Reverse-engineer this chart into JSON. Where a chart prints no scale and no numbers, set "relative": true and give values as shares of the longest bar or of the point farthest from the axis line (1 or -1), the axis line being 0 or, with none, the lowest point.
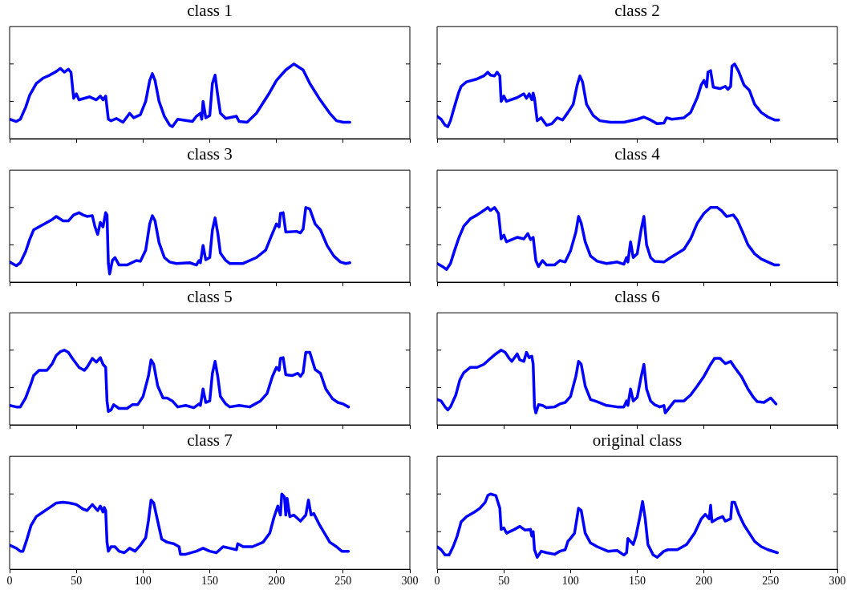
{
  "chart_data": [
    {
      "type": "line",
      "title": "class 1",
      "color": "#0000ff",
      "relative": true,
      "xlim": [
        0,
        300
      ],
      "xticks": [
        0,
        50,
        100,
        150,
        200,
        250,
        300
      ],
      "tick_labels": false,
      "x": [
        0,
        5,
        8,
        12,
        15,
        20,
        25,
        30,
        35,
        38,
        41,
        44,
        46,
        48,
        50,
        52,
        60,
        65,
        68,
        70,
        72,
        74,
        76,
        80,
        85,
        90,
        93,
        98,
        102,
        105,
        107,
        109,
        112,
        116,
        120,
        122,
        126,
        130,
        137,
        140,
        143,
        144,
        145,
        147,
        150,
        152,
        154,
        156,
        158,
        162,
        170,
        172,
        178,
        185,
        195,
        200,
        207,
        213,
        220,
        225,
        232,
        240,
        245,
        250,
        255
      ],
      "values": [
        0.26,
        0.23,
        0.26,
        0.42,
        0.58,
        0.74,
        0.81,
        0.85,
        0.9,
        0.94,
        0.89,
        0.93,
        0.89,
        0.54,
        0.6,
        0.52,
        0.56,
        0.52,
        0.57,
        0.52,
        0.57,
        0.26,
        0.24,
        0.27,
        0.22,
        0.34,
        0.28,
        0.32,
        0.5,
        0.78,
        0.87,
        0.78,
        0.5,
        0.3,
        0.18,
        0.16,
        0.26,
        0.25,
        0.23,
        0.3,
        0.34,
        0.26,
        0.5,
        0.28,
        0.31,
        0.74,
        0.85,
        0.58,
        0.34,
        0.27,
        0.3,
        0.23,
        0.22,
        0.34,
        0.62,
        0.78,
        0.92,
        1,
        0.92,
        0.74,
        0.54,
        0.34,
        0.24,
        0.22,
        0.22
      ]
    },
    {
      "type": "line",
      "title": "class 2",
      "color": "#0000ff",
      "relative": true,
      "xlim": [
        0,
        300
      ],
      "xticks": [
        0,
        50,
        100,
        150,
        200,
        250,
        300
      ],
      "tick_labels": false,
      "x": [
        0,
        3,
        6,
        8,
        10,
        13,
        16,
        18,
        22,
        30,
        35,
        38,
        40,
        43,
        45,
        47,
        48,
        50,
        52,
        60,
        65,
        67,
        69,
        71,
        72,
        73,
        75,
        78,
        82,
        86,
        90,
        94,
        98,
        102,
        105,
        107,
        109,
        112,
        117,
        122,
        130,
        140,
        150,
        155,
        160,
        165,
        170,
        172,
        176,
        185,
        190,
        195,
        198,
        200,
        202,
        203,
        205,
        207,
        212,
        216,
        218,
        220,
        221,
        223,
        226,
        230,
        234,
        238,
        243,
        248,
        253,
        256
      ],
      "values": [
        0.3,
        0.26,
        0.18,
        0.16,
        0.24,
        0.43,
        0.61,
        0.7,
        0.76,
        0.8,
        0.84,
        0.89,
        0.85,
        0.84,
        0.89,
        0.84,
        0.5,
        0.57,
        0.5,
        0.55,
        0.6,
        0.54,
        0.6,
        0.52,
        0.61,
        0.54,
        0.24,
        0.28,
        0.18,
        0.2,
        0.28,
        0.25,
        0.35,
        0.46,
        0.72,
        0.84,
        0.76,
        0.46,
        0.31,
        0.24,
        0.22,
        0.22,
        0.26,
        0.29,
        0.25,
        0.2,
        0.21,
        0.28,
        0.26,
        0.28,
        0.35,
        0.55,
        0.72,
        0.78,
        0.69,
        0.89,
        0.91,
        0.69,
        0.67,
        0.7,
        0.66,
        0.7,
        0.97,
        1,
        0.9,
        0.72,
        0.65,
        0.46,
        0.35,
        0.29,
        0.25,
        0.25
      ]
    },
    {
      "type": "line",
      "title": "class 3",
      "color": "#0000ff",
      "relative": true,
      "xlim": [
        0,
        300
      ],
      "xticks": [
        0,
        50,
        100,
        150,
        200,
        250,
        300
      ],
      "tick_labels": false,
      "x": [
        0,
        5,
        8,
        12,
        15,
        18,
        22,
        28,
        32,
        35,
        40,
        44,
        48,
        52,
        55,
        58,
        62,
        64,
        66,
        68,
        70,
        72,
        73,
        74,
        75,
        77,
        79,
        82,
        88,
        95,
        98,
        102,
        105,
        107,
        109,
        112,
        116,
        120,
        125,
        135,
        140,
        142,
        143,
        145,
        147,
        150,
        152,
        154,
        156,
        158,
        162,
        165,
        175,
        185,
        192,
        196,
        200,
        202,
        203,
        205,
        207,
        215,
        218,
        220,
        222,
        225,
        229,
        233,
        238,
        243,
        248,
        252,
        255
      ],
      "values": [
        0.27,
        0.22,
        0.26,
        0.41,
        0.57,
        0.7,
        0.74,
        0.8,
        0.84,
        0.88,
        0.82,
        0.82,
        0.9,
        0.93,
        0.9,
        0.88,
        0.89,
        0.74,
        0.64,
        0.8,
        0.74,
        0.93,
        0.9,
        0.25,
        0.11,
        0.29,
        0.33,
        0.23,
        0.23,
        0.29,
        0.28,
        0.43,
        0.78,
        0.89,
        0.82,
        0.53,
        0.33,
        0.27,
        0.25,
        0.26,
        0.23,
        0.29,
        0.26,
        0.49,
        0.3,
        0.33,
        0.7,
        0.86,
        0.66,
        0.39,
        0.29,
        0.25,
        0.25,
        0.33,
        0.43,
        0.61,
        0.78,
        0.74,
        0.92,
        0.93,
        0.67,
        0.68,
        0.66,
        0.71,
        1,
        0.98,
        0.78,
        0.7,
        0.49,
        0.35,
        0.27,
        0.25,
        0.26
      ]
    },
    {
      "type": "line",
      "title": "class 4",
      "color": "#0000ff",
      "relative": true,
      "xlim": [
        0,
        300
      ],
      "xticks": [
        0,
        50,
        100,
        150,
        200,
        250,
        300
      ],
      "tick_labels": false,
      "x": [
        0,
        4,
        7,
        10,
        13,
        16,
        20,
        25,
        30,
        35,
        38,
        40,
        43,
        46,
        48,
        50,
        52,
        60,
        65,
        68,
        70,
        72,
        74,
        76,
        79,
        82,
        88,
        92,
        96,
        100,
        104,
        106,
        108,
        111,
        115,
        120,
        127,
        135,
        140,
        142,
        143,
        145,
        147,
        150,
        153,
        155,
        157,
        160,
        163,
        170,
        175,
        185,
        190,
        195,
        200,
        205,
        210,
        213,
        217,
        222,
        225,
        229,
        233,
        238,
        243,
        248,
        253,
        256
      ],
      "values": [
        0.25,
        0.21,
        0.17,
        0.25,
        0.42,
        0.58,
        0.75,
        0.85,
        0.9,
        0.96,
        1,
        0.96,
        1,
        0.92,
        0.58,
        0.63,
        0.54,
        0.6,
        0.58,
        0.65,
        0.57,
        0.6,
        0.29,
        0.21,
        0.29,
        0.23,
        0.23,
        0.29,
        0.27,
        0.42,
        0.67,
        0.88,
        0.79,
        0.54,
        0.35,
        0.28,
        0.25,
        0.27,
        0.24,
        0.33,
        0.27,
        0.54,
        0.33,
        0.38,
        0.71,
        0.88,
        0.5,
        0.33,
        0.28,
        0.27,
        0.33,
        0.44,
        0.58,
        0.79,
        0.92,
        1,
        1,
        0.96,
        0.88,
        0.9,
        0.83,
        0.67,
        0.5,
        0.38,
        0.31,
        0.27,
        0.23,
        0.23
      ]
    },
    {
      "type": "line",
      "title": "class 5",
      "color": "#0000ff",
      "relative": true,
      "xlim": [
        0,
        300
      ],
      "xticks": [
        0,
        50,
        100,
        150,
        200,
        250,
        300
      ],
      "tick_labels": false,
      "x": [
        0,
        5,
        8,
        12,
        16,
        18,
        22,
        28,
        32,
        35,
        38,
        41,
        44,
        47,
        52,
        56,
        58,
        62,
        65,
        68,
        70,
        72,
        73,
        74,
        76,
        78,
        82,
        88,
        92,
        96,
        100,
        104,
        106,
        108,
        111,
        115,
        118,
        122,
        126,
        132,
        138,
        142,
        143,
        145,
        147,
        150,
        152,
        154,
        156,
        158,
        162,
        165,
        172,
        180,
        188,
        193,
        197,
        200,
        202,
        203,
        205,
        207,
        212,
        216,
        218,
        220,
        222,
        225,
        229,
        233,
        237,
        242,
        246,
        250,
        254
      ],
      "values": [
        0.26,
        0.24,
        0.24,
        0.36,
        0.55,
        0.66,
        0.73,
        0.73,
        0.82,
        0.93,
        0.98,
        1,
        0.97,
        0.89,
        0.77,
        0.73,
        0.77,
        0.89,
        0.84,
        0.9,
        0.81,
        0.77,
        0.32,
        0.18,
        0.2,
        0.27,
        0.22,
        0.22,
        0.27,
        0.27,
        0.38,
        0.65,
        0.87,
        0.81,
        0.52,
        0.36,
        0.36,
        0.32,
        0.24,
        0.26,
        0.23,
        0.28,
        0.26,
        0.48,
        0.3,
        0.32,
        0.69,
        0.85,
        0.65,
        0.38,
        0.28,
        0.24,
        0.26,
        0.24,
        0.32,
        0.42,
        0.65,
        0.77,
        0.73,
        0.89,
        0.9,
        0.67,
        0.66,
        0.69,
        0.65,
        0.7,
        0.97,
        0.97,
        0.74,
        0.69,
        0.48,
        0.35,
        0.3,
        0.28,
        0.24
      ]
    },
    {
      "type": "line",
      "title": "class 6",
      "color": "#0000ff",
      "relative": true,
      "xlim": [
        0,
        300
      ],
      "xticks": [
        0,
        50,
        100,
        150,
        200,
        250,
        300
      ],
      "tick_labels": false,
      "x": [
        0,
        3,
        6,
        8,
        10,
        14,
        17,
        20,
        25,
        30,
        35,
        40,
        44,
        48,
        51,
        54,
        56,
        60,
        62,
        65,
        67,
        69,
        71,
        72,
        73,
        74,
        76,
        79,
        82,
        88,
        92,
        96,
        100,
        104,
        106,
        108,
        111,
        115,
        120,
        127,
        135,
        140,
        142,
        143,
        145,
        147,
        150,
        153,
        155,
        157,
        160,
        163,
        167,
        170,
        171,
        174,
        178,
        185,
        190,
        195,
        200,
        205,
        208,
        212,
        216,
        220,
        223,
        228,
        233,
        237,
        240,
        245,
        250,
        254
      ],
      "values": [
        0.34,
        0.32,
        0.24,
        0.2,
        0.24,
        0.4,
        0.6,
        0.7,
        0.77,
        0.77,
        0.81,
        0.89,
        0.95,
        1,
        0.97,
        0.89,
        0.85,
        0.95,
        0.87,
        0.85,
        0.97,
        0.9,
        0.92,
        0.81,
        0.24,
        0.16,
        0.27,
        0.26,
        0.23,
        0.24,
        0.28,
        0.3,
        0.38,
        0.65,
        0.85,
        0.81,
        0.52,
        0.34,
        0.31,
        0.26,
        0.24,
        0.24,
        0.32,
        0.26,
        0.48,
        0.32,
        0.37,
        0.65,
        0.81,
        0.48,
        0.32,
        0.27,
        0.24,
        0.26,
        0.16,
        0.23,
        0.32,
        0.32,
        0.4,
        0.52,
        0.65,
        0.81,
        0.89,
        0.89,
        0.82,
        0.85,
        0.77,
        0.65,
        0.48,
        0.37,
        0.31,
        0.3,
        0.36,
        0.28
      ]
    },
    {
      "type": "line",
      "title": "class 7",
      "color": "#0000ff",
      "relative": true,
      "xlim": [
        0,
        300
      ],
      "xticks": [
        0,
        50,
        100,
        150,
        200,
        250,
        300
      ],
      "tick_labels": "x",
      "x": [
        0,
        5,
        8,
        10,
        13,
        16,
        20,
        25,
        30,
        35,
        40,
        45,
        50,
        55,
        58,
        62,
        66,
        68,
        70,
        71,
        72,
        73,
        74,
        76,
        79,
        82,
        86,
        90,
        94,
        98,
        102,
        104,
        106,
        108,
        111,
        114,
        118,
        123,
        127,
        128,
        132,
        140,
        145,
        150,
        155,
        160,
        165,
        170,
        171,
        175,
        182,
        190,
        195,
        198,
        201,
        203,
        204,
        206,
        207,
        208,
        210,
        213,
        218,
        222,
        224,
        226,
        228,
        232,
        236,
        240,
        245,
        249,
        254
      ],
      "values": [
        0.32,
        0.28,
        0.24,
        0.24,
        0.4,
        0.58,
        0.7,
        0.76,
        0.82,
        0.88,
        0.89,
        0.88,
        0.86,
        0.8,
        0.78,
        0.86,
        0.78,
        0.84,
        0.76,
        0.82,
        0.78,
        0.36,
        0.24,
        0.3,
        0.3,
        0.24,
        0.22,
        0.28,
        0.24,
        0.32,
        0.42,
        0.64,
        0.92,
        0.88,
        0.64,
        0.4,
        0.36,
        0.34,
        0.3,
        0.2,
        0.2,
        0.24,
        0.28,
        0.24,
        0.22,
        0.3,
        0.28,
        0.26,
        0.34,
        0.3,
        0.3,
        0.36,
        0.48,
        0.68,
        0.84,
        0.72,
        1,
        0.96,
        0.72,
        0.94,
        0.7,
        0.72,
        0.64,
        0.72,
        0.92,
        0.72,
        0.74,
        0.6,
        0.48,
        0.36,
        0.3,
        0.24,
        0.24
      ]
    },
    {
      "type": "line",
      "title": "original class",
      "color": "#0000ff",
      "relative": true,
      "xlim": [
        0,
        300
      ],
      "xticks": [
        0,
        50,
        100,
        150,
        200,
        250,
        300
      ],
      "tick_labels": "x",
      "x": [
        0,
        3,
        6,
        9,
        12,
        15,
        18,
        22,
        28,
        32,
        36,
        38,
        40,
        44,
        47,
        48,
        50,
        52,
        58,
        62,
        66,
        70,
        71,
        72,
        73,
        75,
        78,
        82,
        88,
        92,
        96,
        98,
        100,
        103,
        106,
        108,
        111,
        115,
        120,
        128,
        135,
        140,
        142,
        143,
        145,
        147,
        149,
        152,
        154,
        156,
        158,
        162,
        165,
        170,
        173,
        180,
        187,
        193,
        198,
        201,
        204,
        205,
        206,
        210,
        214,
        216,
        220,
        221,
        223,
        226,
        230,
        234,
        238,
        243,
        248,
        255
      ],
      "values": [
        0.3,
        0.26,
        0.19,
        0.19,
        0.3,
        0.44,
        0.63,
        0.7,
        0.76,
        0.81,
        0.89,
        0.98,
        1,
        0.98,
        0.81,
        0.53,
        0.55,
        0.48,
        0.53,
        0.57,
        0.52,
        0.53,
        0.44,
        0.5,
        0.26,
        0.16,
        0.24,
        0.22,
        0.2,
        0.24,
        0.26,
        0.37,
        0.41,
        0.48,
        0.81,
        0.78,
        0.48,
        0.35,
        0.3,
        0.24,
        0.25,
        0.19,
        0.22,
        0.41,
        0.37,
        0.33,
        0.44,
        0.7,
        0.9,
        0.67,
        0.33,
        0.19,
        0.16,
        0.24,
        0.26,
        0.26,
        0.33,
        0.48,
        0.67,
        0.73,
        0.67,
        0.85,
        0.63,
        0.67,
        0.7,
        0.64,
        0.67,
        0.89,
        0.89,
        0.74,
        0.59,
        0.48,
        0.37,
        0.3,
        0.26,
        0.22
      ]
    }
  ]
}
